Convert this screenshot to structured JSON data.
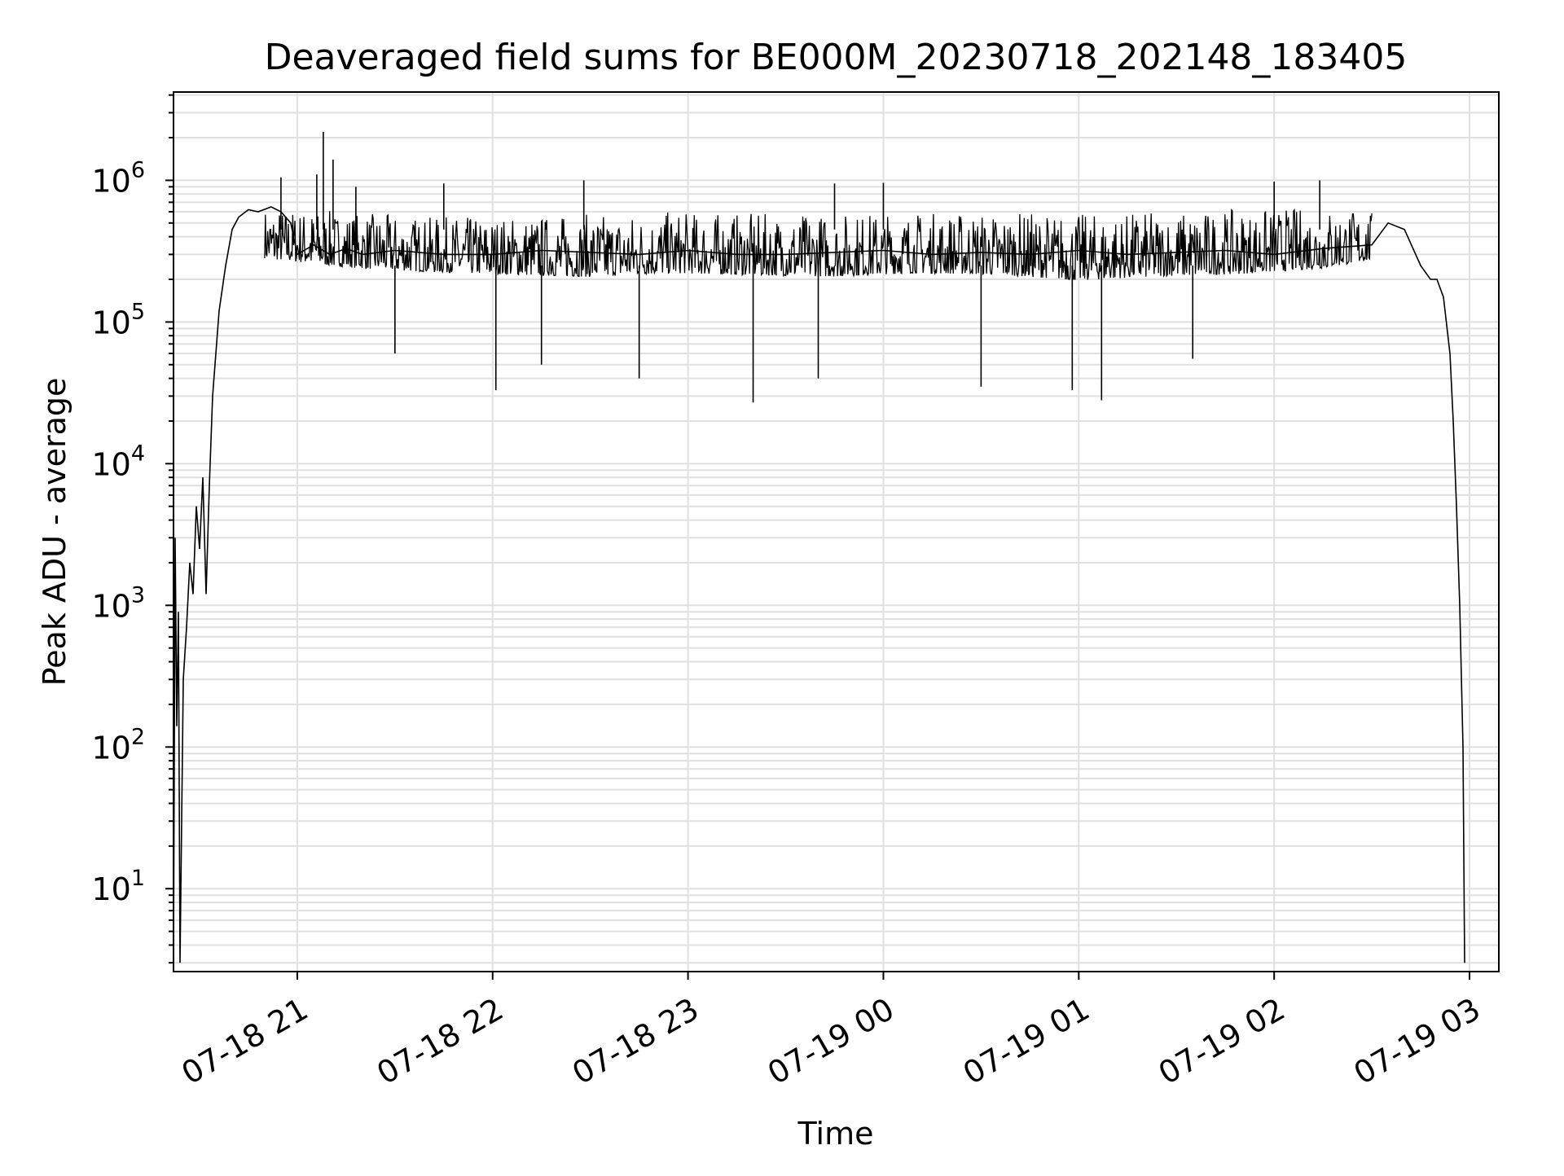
{
  "chart_data": {
    "type": "line",
    "title": "Deaveraged field sums for BE000M_20230718_202148_183405",
    "xlabel": "Time",
    "ylabel": "Peak ADU - average",
    "yscale": "log",
    "ylim": [
      2.6,
      4200000
    ],
    "xlim": [
      "2023-07-18 20:22",
      "2023-07-19 03:09"
    ],
    "grid": true,
    "line_color": "#000000",
    "grid_color": "#e0e0e0",
    "x_ticks": [
      {
        "value": "2023-07-18 21:00",
        "label": "07-18 21"
      },
      {
        "value": "2023-07-18 22:00",
        "label": "07-18 22"
      },
      {
        "value": "2023-07-18 23:00",
        "label": "07-18 23"
      },
      {
        "value": "2023-07-19 00:00",
        "label": "07-19 00"
      },
      {
        "value": "2023-07-19 01:00",
        "label": "07-19 01"
      },
      {
        "value": "2023-07-19 02:00",
        "label": "07-19 02"
      },
      {
        "value": "2023-07-19 03:00",
        "label": "07-19 03"
      }
    ],
    "y_ticks": [
      {
        "value": 10,
        "base": "10",
        "exp": "1"
      },
      {
        "value": 100,
        "base": "10",
        "exp": "2"
      },
      {
        "value": 1000,
        "base": "10",
        "exp": "3"
      },
      {
        "value": 10000,
        "base": "10",
        "exp": "4"
      },
      {
        "value": 100000,
        "base": "10",
        "exp": "5"
      },
      {
        "value": 1000000,
        "base": "10",
        "exp": "6"
      }
    ],
    "series": [
      {
        "x": [
          "2023-07-18 20:22",
          "2023-07-18 20:22:30",
          "2023-07-18 20:23",
          "2023-07-18 20:23:30",
          "2023-07-18 20:24",
          "2023-07-18 20:25",
          "2023-07-18 20:26",
          "2023-07-18 20:27",
          "2023-07-18 20:28",
          "2023-07-18 20:29",
          "2023-07-18 20:30",
          "2023-07-18 20:31",
          "2023-07-18 20:32",
          "2023-07-18 20:33",
          "2023-07-18 20:34",
          "2023-07-18 20:36",
          "2023-07-18 20:38",
          "2023-07-18 20:40",
          "2023-07-18 20:42",
          "2023-07-18 20:45",
          "2023-07-18 20:48",
          "2023-07-18 20:52",
          "2023-07-18 20:55",
          "2023-07-18 20:58",
          "2023-07-18 21:00",
          "2023-07-18 21:05",
          "2023-07-18 21:10",
          "2023-07-18 21:15",
          "2023-07-18 21:20",
          "2023-07-18 21:30",
          "2023-07-18 21:45",
          "2023-07-18 22:00",
          "2023-07-18 22:15",
          "2023-07-18 22:30",
          "2023-07-18 22:45",
          "2023-07-18 23:00",
          "2023-07-18 23:15",
          "2023-07-18 23:30",
          "2023-07-18 23:45",
          "2023-07-19 00:00",
          "2023-07-19 00:15",
          "2023-07-19 00:30",
          "2023-07-19 00:45",
          "2023-07-19 01:00",
          "2023-07-19 01:15",
          "2023-07-19 01:30",
          "2023-07-19 01:45",
          "2023-07-19 02:00",
          "2023-07-19 02:15",
          "2023-07-19 02:30",
          "2023-07-19 02:35",
          "2023-07-19 02:40",
          "2023-07-19 02:45",
          "2023-07-19 02:48",
          "2023-07-19 02:50",
          "2023-07-19 02:52",
          "2023-07-19 02:54",
          "2023-07-19 02:55",
          "2023-07-19 02:56",
          "2023-07-19 02:57",
          "2023-07-19 02:58",
          "2023-07-19 02:58:30"
        ],
        "y": [
          3,
          3000,
          140,
          900,
          3,
          300,
          700,
          2000,
          1200,
          5000,
          2500,
          8000,
          1200,
          7000,
          30000,
          120000,
          250000,
          450000,
          550000,
          620000,
          600000,
          650000,
          600000,
          500000,
          300000,
          350000,
          300000,
          330000,
          300000,
          320000,
          300000,
          300000,
          320000,
          310000,
          300000,
          320000,
          300000,
          300000,
          310000,
          320000,
          300000,
          310000,
          300000,
          320000,
          300000,
          310000,
          320000,
          300000,
          330000,
          350000,
          500000,
          450000,
          250000,
          200000,
          200000,
          150000,
          60000,
          20000,
          5000,
          1000,
          100,
          3
        ]
      }
    ],
    "envelope": {
      "x": [
        "2023-07-18 20:50",
        "2023-07-18 21:15",
        "2023-07-18 21:40",
        "2023-07-18 22:05",
        "2023-07-18 22:30",
        "2023-07-18 22:55",
        "2023-07-18 23:20",
        "2023-07-18 23:45",
        "2023-07-19 00:10",
        "2023-07-19 00:35",
        "2023-07-19 01:00",
        "2023-07-19 01:25",
        "2023-07-19 01:50",
        "2023-07-19 02:15",
        "2023-07-19 02:30"
      ],
      "upper": [
        650000,
        600000,
        550000,
        560000,
        580000,
        600000,
        580000,
        590000,
        600000,
        600000,
        580000,
        600000,
        620000,
        650000,
        600000
      ],
      "lower": [
        180000,
        150000,
        140000,
        130000,
        120000,
        130000,
        125000,
        120000,
        130000,
        125000,
        110000,
        120000,
        125000,
        140000,
        180000
      ]
    },
    "spikes_up": [
      {
        "x": "2023-07-18 20:55",
        "y": 1050000
      },
      {
        "x": "2023-07-18 21:06",
        "y": 1100000
      },
      {
        "x": "2023-07-18 21:08",
        "y": 2200000
      },
      {
        "x": "2023-07-18 21:11",
        "y": 1400000
      },
      {
        "x": "2023-07-18 21:18",
        "y": 900000
      },
      {
        "x": "2023-07-18 21:45",
        "y": 950000
      },
      {
        "x": "2023-07-18 22:28",
        "y": 1000000
      },
      {
        "x": "2023-07-18 23:45",
        "y": 950000
      },
      {
        "x": "2023-07-19 00:00",
        "y": 960000
      },
      {
        "x": "2023-07-19 02:00",
        "y": 980000
      },
      {
        "x": "2023-07-19 02:14",
        "y": 1000000
      }
    ],
    "spikes_down": [
      {
        "x": "2023-07-18 21:30",
        "y": 60000
      },
      {
        "x": "2023-07-18 22:01",
        "y": 33000
      },
      {
        "x": "2023-07-18 22:15",
        "y": 50000
      },
      {
        "x": "2023-07-18 22:45",
        "y": 40000
      },
      {
        "x": "2023-07-18 23:20",
        "y": 27000
      },
      {
        "x": "2023-07-18 23:40",
        "y": 40000
      },
      {
        "x": "2023-07-19 00:30",
        "y": 35000
      },
      {
        "x": "2023-07-19 00:58",
        "y": 33000
      },
      {
        "x": "2023-07-19 01:07",
        "y": 28000
      },
      {
        "x": "2023-07-19 01:35",
        "y": 55000
      }
    ]
  }
}
